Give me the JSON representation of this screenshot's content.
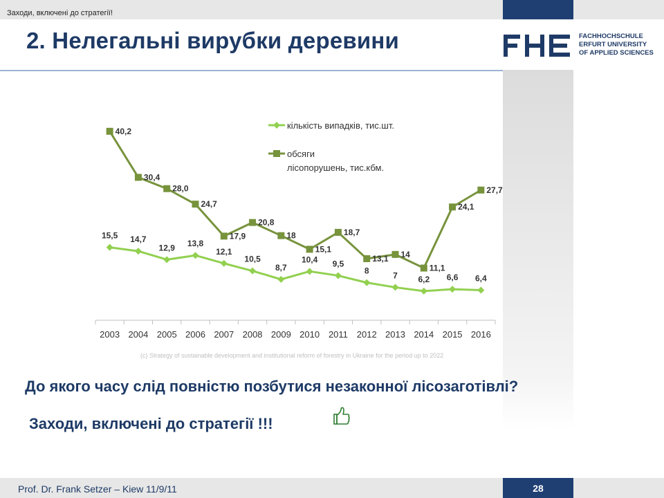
{
  "header": {
    "breadcrumb": "Заходи, включені до стратегії!",
    "title": "2. Нелегальні вирубки деревини"
  },
  "logo": {
    "mark": "FHE",
    "lines": [
      "FACHHOCHSCHULE",
      "ERFURT UNIVERSITY",
      "OF APPLIED SCIENCES"
    ]
  },
  "colors": {
    "brand_blue": "#1f3f73",
    "title_blue": "#1e3a66",
    "series_cases": "#92d050",
    "series_volume": "#77933c"
  },
  "chart_data": {
    "type": "line",
    "categories": [
      "2003",
      "2004",
      "2005",
      "2006",
      "2007",
      "2008",
      "2009",
      "2010",
      "2011",
      "2012",
      "2013",
      "2014",
      "2015",
      "2016"
    ],
    "series": [
      {
        "name": "кількість випадків, тис.шт.",
        "values": [
          15.5,
          14.7,
          12.9,
          13.8,
          12.1,
          10.5,
          8.7,
          10.4,
          9.5,
          8,
          7,
          6.2,
          6.6,
          6.4
        ],
        "labels": [
          "15,5",
          "14,7",
          "12,9",
          "13,8",
          "12,1",
          "10,5",
          "8,7",
          "10,4",
          "9,5",
          "8",
          "7",
          "6,2",
          "6,6",
          "6,4"
        ],
        "marker": "diamond"
      },
      {
        "name": "обсяги лісопорушень, тис.кбм.",
        "values": [
          40.2,
          30.4,
          28.0,
          24.7,
          17.9,
          20.8,
          18,
          15.1,
          18.7,
          13.1,
          14,
          11.1,
          24.1,
          27.7
        ],
        "labels": [
          "40,2",
          "30,4",
          "28,0",
          "24,7",
          "17,9",
          "20,8",
          "18",
          "15,1",
          "18,7",
          "13,1",
          "14",
          "11,1",
          "24,1",
          "27,7"
        ],
        "marker": "square"
      }
    ],
    "legend": {
      "position": "top-right",
      "items": [
        {
          "lines": [
            "кількість випадків, тис.шт."
          ]
        },
        {
          "lines": [
            "обсяги",
            "лісопорушень, тис.кбм."
          ]
        }
      ]
    },
    "ylim": [
      0,
      44
    ],
    "grid": false
  },
  "source_note": "(c) Strategy of sustainable development and institutional reform of forestry in Ukraine for the period up to 2022",
  "body": {
    "question": "До якого часу слід повністю позбутися незаконної лісозаготівлі?",
    "answer": "Заходи, включені до стратегії !!!",
    "answer_icon": "thumbs-up-icon"
  },
  "footer": {
    "text": "Prof. Dr. Frank Setzer – Kiew 11/9/11",
    "page_number": "28"
  }
}
